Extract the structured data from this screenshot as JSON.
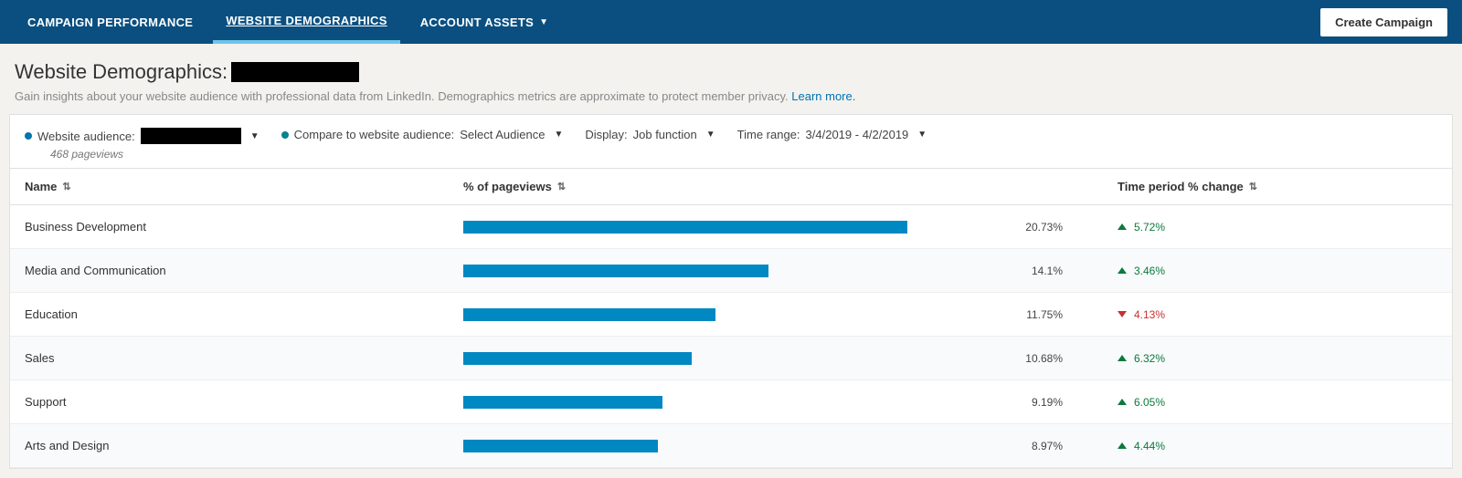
{
  "nav": {
    "tabs": [
      {
        "label": "CAMPAIGN PERFORMANCE",
        "active": false,
        "hasDropdown": false
      },
      {
        "label": "WEBSITE DEMOGRAPHICS",
        "active": true,
        "hasDropdown": false
      },
      {
        "label": "ACCOUNT ASSETS",
        "active": false,
        "hasDropdown": true
      }
    ],
    "create_button": "Create Campaign"
  },
  "header": {
    "title_prefix": "Website Demographics:",
    "subtitle": "Gain insights about your website audience with professional data from LinkedIn. Demographics metrics are approximate to protect member privacy.",
    "learn_more": "Learn more."
  },
  "filters": {
    "audience_label": "Website audience:",
    "pageviews_text": "468 pageviews",
    "compare_label": "Compare to website audience:",
    "compare_value": "Select Audience",
    "display_label": "Display:",
    "display_value": "Job function",
    "time_label": "Time range:",
    "time_value": "3/4/2019 - 4/2/2019"
  },
  "table": {
    "columns": {
      "name": "Name",
      "pageviews": "% of pageviews",
      "change": "Time period % change"
    },
    "bar_color": "#0088c2",
    "max_bar_pct": 26,
    "rows": [
      {
        "name": "Business Development",
        "pct": 20.73,
        "pct_label": "20.73%",
        "change": 5.72,
        "change_label": "5.72%",
        "dir": "up"
      },
      {
        "name": "Media and Communication",
        "pct": 14.1,
        "pct_label": "14.1%",
        "change": 3.46,
        "change_label": "3.46%",
        "dir": "up"
      },
      {
        "name": "Education",
        "pct": 11.75,
        "pct_label": "11.75%",
        "change": 4.13,
        "change_label": "4.13%",
        "dir": "down"
      },
      {
        "name": "Sales",
        "pct": 10.68,
        "pct_label": "10.68%",
        "change": 6.32,
        "change_label": "6.32%",
        "dir": "up"
      },
      {
        "name": "Support",
        "pct": 9.19,
        "pct_label": "9.19%",
        "change": 6.05,
        "change_label": "6.05%",
        "dir": "up"
      },
      {
        "name": "Arts and Design",
        "pct": 8.97,
        "pct_label": "8.97%",
        "change": 4.44,
        "change_label": "4.44%",
        "dir": "up"
      }
    ]
  }
}
